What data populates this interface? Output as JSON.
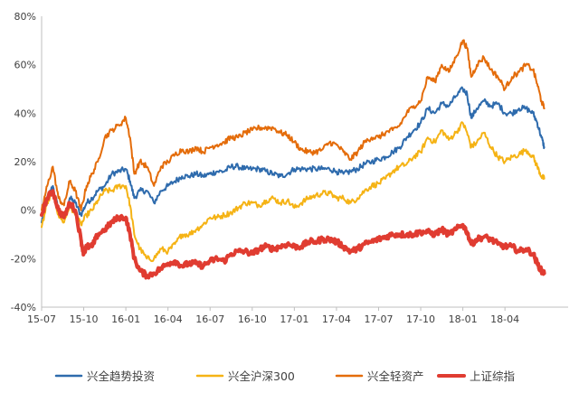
{
  "chart_data": {
    "type": "line",
    "title": "",
    "xlabel": "",
    "ylabel": "",
    "y_unit": "%",
    "ylim": [
      -40,
      80
    ],
    "yticks": [
      -40,
      -20,
      0,
      20,
      40,
      60,
      80
    ],
    "ytick_labels": [
      "-40%",
      "-20%",
      "0%",
      "20%",
      "40%",
      "60%",
      "80%"
    ],
    "xlim": [
      0,
      37.5
    ],
    "xticks": [
      0,
      3,
      6,
      9,
      12,
      15,
      18,
      21,
      24,
      27,
      30,
      33
    ],
    "xtick_labels": [
      "15-07",
      "15-10",
      "16-01",
      "16-04",
      "16-07",
      "16-10",
      "17-01",
      "17-04",
      "17-07",
      "17-10",
      "18-01",
      "18-04"
    ],
    "grid": false,
    "legend_position": "bottom",
    "series": [
      {
        "name": "兴全趋势投资",
        "color": "#2e6bad",
        "width": 2,
        "points": [
          [
            0,
            -5
          ],
          [
            0.4,
            5
          ],
          [
            0.8,
            10
          ],
          [
            1.2,
            0
          ],
          [
            1.6,
            -3
          ],
          [
            2.0,
            5
          ],
          [
            2.4,
            3
          ],
          [
            2.8,
            -2
          ],
          [
            3.2,
            3
          ],
          [
            3.6,
            5
          ],
          [
            4.0,
            8
          ],
          [
            4.5,
            10
          ],
          [
            5.0,
            15
          ],
          [
            5.5,
            16
          ],
          [
            6.0,
            17
          ],
          [
            6.3,
            12
          ],
          [
            6.6,
            5
          ],
          [
            7.0,
            8
          ],
          [
            7.5,
            8
          ],
          [
            8.0,
            3
          ],
          [
            8.5,
            8
          ],
          [
            9.0,
            10
          ],
          [
            9.5,
            12
          ],
          [
            10.0,
            14
          ],
          [
            10.5,
            14
          ],
          [
            11.0,
            15
          ],
          [
            11.5,
            14
          ],
          [
            12.0,
            15
          ],
          [
            12.5,
            16
          ],
          [
            13.0,
            16
          ],
          [
            13.5,
            18
          ],
          [
            14.0,
            18
          ],
          [
            14.5,
            17
          ],
          [
            15.0,
            17
          ],
          [
            15.5,
            17
          ],
          [
            16.0,
            16
          ],
          [
            16.5,
            15
          ],
          [
            17.0,
            14
          ],
          [
            17.5,
            15
          ],
          [
            18.0,
            17
          ],
          [
            18.5,
            17
          ],
          [
            19.0,
            17
          ],
          [
            19.5,
            17
          ],
          [
            20.0,
            17
          ],
          [
            20.5,
            17
          ],
          [
            21.0,
            16
          ],
          [
            21.5,
            15
          ],
          [
            22.0,
            16
          ],
          [
            22.5,
            17
          ],
          [
            23.0,
            19
          ],
          [
            23.5,
            20
          ],
          [
            24.0,
            21
          ],
          [
            24.5,
            22
          ],
          [
            25.0,
            24
          ],
          [
            25.5,
            26
          ],
          [
            26.0,
            30
          ],
          [
            26.5,
            33
          ],
          [
            27.0,
            36
          ],
          [
            27.5,
            42
          ],
          [
            28.0,
            40
          ],
          [
            28.5,
            44
          ],
          [
            29.0,
            43
          ],
          [
            29.5,
            47
          ],
          [
            30.0,
            50
          ],
          [
            30.3,
            48
          ],
          [
            30.6,
            38
          ],
          [
            31.0,
            42
          ],
          [
            31.5,
            45
          ],
          [
            32.0,
            43
          ],
          [
            32.5,
            44
          ],
          [
            33.0,
            40
          ],
          [
            33.5,
            40
          ],
          [
            34.0,
            42
          ],
          [
            34.5,
            42
          ],
          [
            35.0,
            40
          ],
          [
            35.3,
            36
          ],
          [
            35.6,
            30
          ],
          [
            35.8,
            26
          ]
        ]
      },
      {
        "name": "兴全沪深300",
        "color": "#f5b315",
        "width": 2,
        "points": [
          [
            0,
            -7
          ],
          [
            0.4,
            3
          ],
          [
            0.8,
            7
          ],
          [
            1.2,
            -2
          ],
          [
            1.6,
            -5
          ],
          [
            2.0,
            2
          ],
          [
            2.4,
            -2
          ],
          [
            2.8,
            -6
          ],
          [
            3.2,
            -2
          ],
          [
            3.6,
            0
          ],
          [
            4.0,
            4
          ],
          [
            4.5,
            8
          ],
          [
            5.0,
            8
          ],
          [
            5.5,
            10
          ],
          [
            6.0,
            10
          ],
          [
            6.3,
            2
          ],
          [
            6.6,
            -10
          ],
          [
            7.0,
            -16
          ],
          [
            7.5,
            -20
          ],
          [
            8.0,
            -20
          ],
          [
            8.5,
            -16
          ],
          [
            9.0,
            -17
          ],
          [
            9.5,
            -14
          ],
          [
            10.0,
            -10
          ],
          [
            10.5,
            -10
          ],
          [
            11.0,
            -8
          ],
          [
            11.5,
            -6
          ],
          [
            12.0,
            -3
          ],
          [
            12.5,
            -3
          ],
          [
            13.0,
            -2
          ],
          [
            13.5,
            -1
          ],
          [
            14.0,
            1
          ],
          [
            14.5,
            3
          ],
          [
            15.0,
            3
          ],
          [
            15.5,
            2
          ],
          [
            16.0,
            4
          ],
          [
            16.5,
            5
          ],
          [
            17.0,
            3
          ],
          [
            17.5,
            4
          ],
          [
            18.0,
            1
          ],
          [
            18.5,
            3
          ],
          [
            19.0,
            5
          ],
          [
            19.5,
            6
          ],
          [
            20.0,
            7
          ],
          [
            20.5,
            7
          ],
          [
            21.0,
            5
          ],
          [
            21.5,
            5
          ],
          [
            22.0,
            3
          ],
          [
            22.5,
            5
          ],
          [
            23.0,
            8
          ],
          [
            23.5,
            10
          ],
          [
            24.0,
            11
          ],
          [
            24.5,
            13
          ],
          [
            25.0,
            16
          ],
          [
            25.5,
            18
          ],
          [
            26.0,
            19
          ],
          [
            26.5,
            22
          ],
          [
            27.0,
            24
          ],
          [
            27.5,
            30
          ],
          [
            28.0,
            28
          ],
          [
            28.5,
            33
          ],
          [
            29.0,
            29
          ],
          [
            29.5,
            32
          ],
          [
            30.0,
            36
          ],
          [
            30.3,
            32
          ],
          [
            30.6,
            26
          ],
          [
            31.0,
            28
          ],
          [
            31.5,
            32
          ],
          [
            32.0,
            26
          ],
          [
            32.5,
            22
          ],
          [
            33.0,
            20
          ],
          [
            33.5,
            22
          ],
          [
            34.0,
            23
          ],
          [
            34.5,
            25
          ],
          [
            35.0,
            22
          ],
          [
            35.3,
            18
          ],
          [
            35.6,
            14
          ],
          [
            35.8,
            13
          ]
        ]
      },
      {
        "name": "兴全轻资产",
        "color": "#e46c0a",
        "width": 2,
        "points": [
          [
            0,
            0
          ],
          [
            0.4,
            10
          ],
          [
            0.8,
            18
          ],
          [
            1.2,
            5
          ],
          [
            1.6,
            2
          ],
          [
            2.0,
            12
          ],
          [
            2.4,
            8
          ],
          [
            2.8,
            0
          ],
          [
            3.2,
            10
          ],
          [
            3.6,
            15
          ],
          [
            4.0,
            20
          ],
          [
            4.5,
            30
          ],
          [
            5.0,
            33
          ],
          [
            5.5,
            35
          ],
          [
            6.0,
            38
          ],
          [
            6.3,
            30
          ],
          [
            6.6,
            15
          ],
          [
            7.0,
            20
          ],
          [
            7.5,
            18
          ],
          [
            8.0,
            10
          ],
          [
            8.5,
            18
          ],
          [
            9.0,
            20
          ],
          [
            9.5,
            23
          ],
          [
            10.0,
            25
          ],
          [
            10.5,
            24
          ],
          [
            11.0,
            26
          ],
          [
            11.5,
            24
          ],
          [
            12.0,
            26
          ],
          [
            12.5,
            27
          ],
          [
            13.0,
            28
          ],
          [
            13.5,
            30
          ],
          [
            14.0,
            30
          ],
          [
            14.5,
            32
          ],
          [
            15.0,
            33
          ],
          [
            15.5,
            34
          ],
          [
            16.0,
            34
          ],
          [
            16.5,
            34
          ],
          [
            17.0,
            32
          ],
          [
            17.5,
            31
          ],
          [
            18.0,
            28
          ],
          [
            18.5,
            25
          ],
          [
            19.0,
            24
          ],
          [
            19.5,
            24
          ],
          [
            20.0,
            25
          ],
          [
            20.5,
            28
          ],
          [
            21.0,
            27
          ],
          [
            21.5,
            24
          ],
          [
            22.0,
            21
          ],
          [
            22.5,
            24
          ],
          [
            23.0,
            28
          ],
          [
            23.5,
            30
          ],
          [
            24.0,
            30
          ],
          [
            24.5,
            32
          ],
          [
            25.0,
            33
          ],
          [
            25.5,
            35
          ],
          [
            26.0,
            40
          ],
          [
            26.5,
            43
          ],
          [
            27.0,
            45
          ],
          [
            27.5,
            55
          ],
          [
            28.0,
            53
          ],
          [
            28.5,
            60
          ],
          [
            29.0,
            57
          ],
          [
            29.5,
            63
          ],
          [
            30.0,
            70
          ],
          [
            30.3,
            67
          ],
          [
            30.6,
            55
          ],
          [
            31.0,
            60
          ],
          [
            31.5,
            63
          ],
          [
            32.0,
            58
          ],
          [
            32.5,
            55
          ],
          [
            33.0,
            50
          ],
          [
            33.5,
            55
          ],
          [
            34.0,
            57
          ],
          [
            34.5,
            60
          ],
          [
            35.0,
            58
          ],
          [
            35.3,
            52
          ],
          [
            35.6,
            45
          ],
          [
            35.8,
            42
          ]
        ]
      },
      {
        "name": "上证综指",
        "color": "#e03c31",
        "width": 4,
        "points": [
          [
            0,
            -2
          ],
          [
            0.4,
            5
          ],
          [
            0.8,
            8
          ],
          [
            1.2,
            0
          ],
          [
            1.6,
            -3
          ],
          [
            2.0,
            3
          ],
          [
            2.4,
            0
          ],
          [
            2.8,
            -12
          ],
          [
            3.0,
            -18
          ],
          [
            3.2,
            -15
          ],
          [
            3.6,
            -15
          ],
          [
            4.0,
            -10
          ],
          [
            4.5,
            -8
          ],
          [
            5.0,
            -5
          ],
          [
            5.5,
            -3
          ],
          [
            6.0,
            -3
          ],
          [
            6.3,
            -10
          ],
          [
            6.6,
            -20
          ],
          [
            7.0,
            -25
          ],
          [
            7.5,
            -27
          ],
          [
            8.0,
            -26
          ],
          [
            8.5,
            -24
          ],
          [
            9.0,
            -22
          ],
          [
            9.5,
            -21
          ],
          [
            10.0,
            -23
          ],
          [
            10.5,
            -22
          ],
          [
            11.0,
            -22
          ],
          [
            11.5,
            -23
          ],
          [
            12.0,
            -21
          ],
          [
            12.5,
            -20
          ],
          [
            13.0,
            -21
          ],
          [
            13.5,
            -18
          ],
          [
            14.0,
            -17
          ],
          [
            14.5,
            -17
          ],
          [
            15.0,
            -18
          ],
          [
            15.5,
            -16
          ],
          [
            16.0,
            -15
          ],
          [
            16.5,
            -16
          ],
          [
            17.0,
            -15
          ],
          [
            17.5,
            -14
          ],
          [
            18.0,
            -15
          ],
          [
            18.5,
            -15
          ],
          [
            19.0,
            -13
          ],
          [
            19.5,
            -13
          ],
          [
            20.0,
            -12
          ],
          [
            20.5,
            -12
          ],
          [
            21.0,
            -13
          ],
          [
            21.5,
            -15
          ],
          [
            22.0,
            -17
          ],
          [
            22.5,
            -16
          ],
          [
            23.0,
            -14
          ],
          [
            23.5,
            -13
          ],
          [
            24.0,
            -12
          ],
          [
            24.5,
            -11
          ],
          [
            25.0,
            -10
          ],
          [
            25.5,
            -10
          ],
          [
            26.0,
            -10
          ],
          [
            26.5,
            -10
          ],
          [
            27.0,
            -9
          ],
          [
            27.5,
            -9
          ],
          [
            28.0,
            -10
          ],
          [
            28.5,
            -8
          ],
          [
            29.0,
            -10
          ],
          [
            29.5,
            -8
          ],
          [
            30.0,
            -6
          ],
          [
            30.3,
            -9
          ],
          [
            30.6,
            -14
          ],
          [
            31.0,
            -12
          ],
          [
            31.5,
            -11
          ],
          [
            32.0,
            -12
          ],
          [
            32.5,
            -14
          ],
          [
            33.0,
            -15
          ],
          [
            33.5,
            -15
          ],
          [
            34.0,
            -17
          ],
          [
            34.5,
            -16
          ],
          [
            35.0,
            -18
          ],
          [
            35.3,
            -22
          ],
          [
            35.6,
            -25
          ],
          [
            35.8,
            -26
          ]
        ]
      }
    ]
  }
}
